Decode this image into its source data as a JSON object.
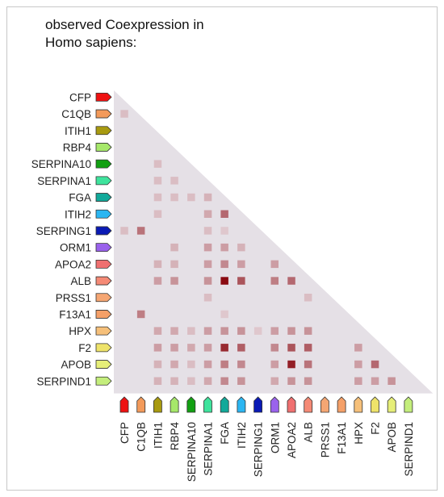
{
  "title": "observed Coexpression in\nHomo sapiens:",
  "genes": [
    {
      "name": "CFP",
      "color": "#ee1111"
    },
    {
      "name": "C1QB",
      "color": "#f39a5a"
    },
    {
      "name": "ITIH1",
      "color": "#a89a10"
    },
    {
      "name": "RBP4",
      "color": "#a6e86a"
    },
    {
      "name": "SERPINA10",
      "color": "#12a012"
    },
    {
      "name": "SERPINA1",
      "color": "#3fe39d"
    },
    {
      "name": "FGA",
      "color": "#12a99a"
    },
    {
      "name": "ITIH2",
      "color": "#2bb6f2"
    },
    {
      "name": "SERPING1",
      "color": "#0a1ab5"
    },
    {
      "name": "ORM1",
      "color": "#9a62ec"
    },
    {
      "name": "APOA2",
      "color": "#f07070"
    },
    {
      "name": "ALB",
      "color": "#f58a76"
    },
    {
      "name": "PRSS1",
      "color": "#f5a673"
    },
    {
      "name": "F13A1",
      "color": "#f5a068"
    },
    {
      "name": "HPX",
      "color": "#f6c07a"
    },
    {
      "name": "F2",
      "color": "#eee36a"
    },
    {
      "name": "APOB",
      "color": "#e6ee78"
    },
    {
      "name": "SERPIND1",
      "color": "#c4ee7c"
    }
  ],
  "chart_data": {
    "type": "heatmap",
    "title": "observed Coexpression in Homo sapiens:",
    "rows": [
      "CFP",
      "C1QB",
      "ITIH1",
      "RBP4",
      "SERPINA10",
      "SERPINA1",
      "FGA",
      "ITIH2",
      "SERPING1",
      "ORM1",
      "APOA2",
      "ALB",
      "PRSS1",
      "F13A1",
      "HPX",
      "F2",
      "APOB",
      "SERPIND1"
    ],
    "columns": [
      "CFP",
      "C1QB",
      "ITIH1",
      "RBP4",
      "SERPINA10",
      "SERPINA1",
      "FGA",
      "ITIH2",
      "SERPING1",
      "ORM1",
      "APOA2",
      "ALB",
      "PRSS1",
      "F13A1",
      "HPX",
      "F2",
      "APOB",
      "SERPIND1"
    ],
    "cells": [
      {
        "row": "C1QB",
        "col": "CFP",
        "value": 0.15
      },
      {
        "row": "SERPINA10",
        "col": "ITIH1",
        "value": 0.15
      },
      {
        "row": "SERPINA1",
        "col": "ITIH1",
        "value": 0.15
      },
      {
        "row": "SERPINA1",
        "col": "RBP4",
        "value": 0.15
      },
      {
        "row": "FGA",
        "col": "ITIH1",
        "value": 0.15
      },
      {
        "row": "FGA",
        "col": "RBP4",
        "value": 0.15
      },
      {
        "row": "FGA",
        "col": "SERPINA10",
        "value": 0.15
      },
      {
        "row": "FGA",
        "col": "SERPINA1",
        "value": 0.2
      },
      {
        "row": "ITIH2",
        "col": "ITIH1",
        "value": 0.15
      },
      {
        "row": "ITIH2",
        "col": "SERPINA1",
        "value": 0.25
      },
      {
        "row": "ITIH2",
        "col": "FGA",
        "value": 0.55
      },
      {
        "row": "SERPING1",
        "col": "CFP",
        "value": 0.15
      },
      {
        "row": "SERPING1",
        "col": "C1QB",
        "value": 0.5
      },
      {
        "row": "SERPING1",
        "col": "SERPINA1",
        "value": 0.15
      },
      {
        "row": "SERPING1",
        "col": "FGA",
        "value": 0.1
      },
      {
        "row": "ORM1",
        "col": "RBP4",
        "value": 0.2
      },
      {
        "row": "ORM1",
        "col": "SERPINA1",
        "value": 0.3
      },
      {
        "row": "ORM1",
        "col": "FGA",
        "value": 0.3
      },
      {
        "row": "ORM1",
        "col": "ITIH2",
        "value": 0.2
      },
      {
        "row": "APOA2",
        "col": "ITIH1",
        "value": 0.2
      },
      {
        "row": "APOA2",
        "col": "RBP4",
        "value": 0.2
      },
      {
        "row": "APOA2",
        "col": "SERPINA1",
        "value": 0.3
      },
      {
        "row": "APOA2",
        "col": "FGA",
        "value": 0.4
      },
      {
        "row": "APOA2",
        "col": "ITIH2",
        "value": 0.3
      },
      {
        "row": "APOA2",
        "col": "ORM1",
        "value": 0.3
      },
      {
        "row": "ALB",
        "col": "ITIH1",
        "value": 0.3
      },
      {
        "row": "ALB",
        "col": "RBP4",
        "value": 0.35
      },
      {
        "row": "ALB",
        "col": "SERPINA1",
        "value": 0.35
      },
      {
        "row": "ALB",
        "col": "FGA",
        "value": 1.0
      },
      {
        "row": "ALB",
        "col": "ITIH2",
        "value": 0.65
      },
      {
        "row": "ALB",
        "col": "ORM1",
        "value": 0.45
      },
      {
        "row": "ALB",
        "col": "APOA2",
        "value": 0.55
      },
      {
        "row": "PRSS1",
        "col": "SERPINA1",
        "value": 0.15
      },
      {
        "row": "PRSS1",
        "col": "ALB",
        "value": 0.15
      },
      {
        "row": "F13A1",
        "col": "C1QB",
        "value": 0.45
      },
      {
        "row": "F13A1",
        "col": "FGA",
        "value": 0.1
      },
      {
        "row": "HPX",
        "col": "ITIH1",
        "value": 0.25
      },
      {
        "row": "HPX",
        "col": "RBP4",
        "value": 0.25
      },
      {
        "row": "HPX",
        "col": "SERPINA10",
        "value": 0.15
      },
      {
        "row": "HPX",
        "col": "SERPINA1",
        "value": 0.3
      },
      {
        "row": "HPX",
        "col": "FGA",
        "value": 0.35
      },
      {
        "row": "HPX",
        "col": "ITIH2",
        "value": 0.35
      },
      {
        "row": "HPX",
        "col": "SERPING1",
        "value": 0.1
      },
      {
        "row": "HPX",
        "col": "ORM1",
        "value": 0.3
      },
      {
        "row": "HPX",
        "col": "APOA2",
        "value": 0.35
      },
      {
        "row": "HPX",
        "col": "ALB",
        "value": 0.35
      },
      {
        "row": "F2",
        "col": "ITIH1",
        "value": 0.3
      },
      {
        "row": "F2",
        "col": "RBP4",
        "value": 0.3
      },
      {
        "row": "F2",
        "col": "SERPINA10",
        "value": 0.25
      },
      {
        "row": "F2",
        "col": "SERPINA1",
        "value": 0.3
      },
      {
        "row": "F2",
        "col": "FGA",
        "value": 0.85
      },
      {
        "row": "F2",
        "col": "ITIH2",
        "value": 0.6
      },
      {
        "row": "F2",
        "col": "ORM1",
        "value": 0.4
      },
      {
        "row": "F2",
        "col": "APOA2",
        "value": 0.65
      },
      {
        "row": "F2",
        "col": "ALB",
        "value": 0.6
      },
      {
        "row": "F2",
        "col": "HPX",
        "value": 0.3
      },
      {
        "row": "APOB",
        "col": "ITIH1",
        "value": 0.2
      },
      {
        "row": "APOB",
        "col": "RBP4",
        "value": 0.25
      },
      {
        "row": "APOB",
        "col": "SERPINA10",
        "value": 0.15
      },
      {
        "row": "APOB",
        "col": "SERPINA1",
        "value": 0.3
      },
      {
        "row": "APOB",
        "col": "FGA",
        "value": 0.45
      },
      {
        "row": "APOB",
        "col": "ITIH2",
        "value": 0.4
      },
      {
        "row": "APOB",
        "col": "ORM1",
        "value": 0.3
      },
      {
        "row": "APOB",
        "col": "APOA2",
        "value": 0.9
      },
      {
        "row": "APOB",
        "col": "ALB",
        "value": 0.5
      },
      {
        "row": "APOB",
        "col": "HPX",
        "value": 0.3
      },
      {
        "row": "APOB",
        "col": "F2",
        "value": 0.55
      },
      {
        "row": "SERPIND1",
        "col": "ITIH1",
        "value": 0.2
      },
      {
        "row": "SERPIND1",
        "col": "RBP4",
        "value": 0.2
      },
      {
        "row": "SERPIND1",
        "col": "SERPINA10",
        "value": 0.15
      },
      {
        "row": "SERPIND1",
        "col": "SERPINA1",
        "value": 0.25
      },
      {
        "row": "SERPIND1",
        "col": "FGA",
        "value": 0.4
      },
      {
        "row": "SERPIND1",
        "col": "ITIH2",
        "value": 0.35
      },
      {
        "row": "SERPIND1",
        "col": "ORM1",
        "value": 0.25
      },
      {
        "row": "SERPIND1",
        "col": "APOA2",
        "value": 0.35
      },
      {
        "row": "SERPIND1",
        "col": "ALB",
        "value": 0.35
      },
      {
        "row": "SERPIND1",
        "col": "HPX",
        "value": 0.3
      },
      {
        "row": "SERPIND1",
        "col": "F2",
        "value": 0.3
      },
      {
        "row": "SERPIND1",
        "col": "APOB",
        "value": 0.35
      }
    ]
  }
}
